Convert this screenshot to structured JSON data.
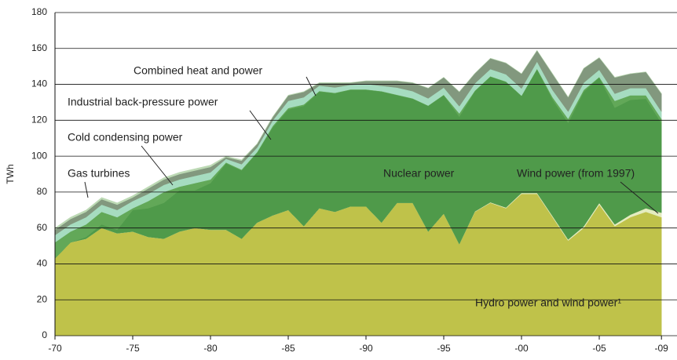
{
  "chart_data": {
    "type": "stacked_area",
    "y_label": "TWh",
    "x": [
      1970,
      1971,
      1972,
      1973,
      1974,
      1975,
      1976,
      1977,
      1978,
      1979,
      1980,
      1981,
      1982,
      1983,
      1984,
      1985,
      1986,
      1987,
      1988,
      1989,
      1990,
      1991,
      1992,
      1993,
      1994,
      1995,
      1996,
      1997,
      1998,
      1999,
      2000,
      2001,
      2002,
      2003,
      2004,
      2005,
      2006,
      2007,
      2008,
      2009
    ],
    "xlim": [
      1970,
      2010
    ],
    "xticks": [
      {
        "value": 1970,
        "label": "-70"
      },
      {
        "value": 1975,
        "label": "-75"
      },
      {
        "value": 1980,
        "label": "-80"
      },
      {
        "value": 1985,
        "label": "-85"
      },
      {
        "value": 1990,
        "label": "-90"
      },
      {
        "value": 1995,
        "label": "-95"
      },
      {
        "value": 2000,
        "label": "-00"
      },
      {
        "value": 2005,
        "label": "-05"
      },
      {
        "value": 2009,
        "label": "-09"
      }
    ],
    "ylim": [
      0,
      180
    ],
    "yticks": [
      0,
      20,
      40,
      60,
      80,
      100,
      120,
      140,
      160,
      180
    ],
    "grid": true,
    "series": [
      {
        "name": "Hydro power and wind power¹",
        "color": "#bfc24a",
        "values": [
          43,
          52,
          54,
          60,
          57,
          58,
          55,
          54,
          58,
          60,
          59,
          59,
          54,
          63,
          67,
          70,
          61,
          71,
          69,
          72,
          72,
          63,
          74,
          74,
          58,
          68,
          51,
          69,
          74,
          71,
          79,
          79,
          66,
          53,
          60,
          73,
          61,
          66,
          69,
          66
        ]
      },
      {
        "name": "Wind power (from 1997)",
        "color": "#e4ecc0",
        "values": [
          0,
          0,
          0,
          0,
          0,
          0,
          0,
          0,
          0,
          0,
          0,
          0,
          0,
          0,
          0,
          0,
          0,
          0,
          0,
          0,
          0,
          0,
          0,
          0,
          0,
          0,
          0,
          0.2,
          0.3,
          0.4,
          0.5,
          0.5,
          0.6,
          0.6,
          0.9,
          0.9,
          1,
          1.4,
          2,
          2.5
        ]
      },
      {
        "name": "Nuclear power",
        "color": "#4f9a4a",
        "values": [
          0,
          0,
          1,
          2,
          2,
          12,
          16,
          20,
          23,
          21,
          26,
          37,
          38,
          39,
          49,
          56,
          67,
          65,
          66,
          65,
          65,
          73,
          60,
          58,
          70,
          66,
          71,
          67,
          70,
          70,
          54,
          69,
          65,
          65,
          75,
          70,
          65,
          64,
          61,
          50
        ]
      },
      {
        "name": "Cold condensing power",
        "color": "#62a858",
        "values": [
          9,
          6,
          7,
          7,
          7,
          1,
          4,
          6,
          2,
          4,
          2,
          0.5,
          0.5,
          0.3,
          0.8,
          0.8,
          0.8,
          0.3,
          0.3,
          0.2,
          0.2,
          0.2,
          0.2,
          0.2,
          0.2,
          0.2,
          1.8,
          0.3,
          0.2,
          0.2,
          0.2,
          0.2,
          1.2,
          2.2,
          1,
          0.2,
          3.8,
          2.5,
          1.9,
          2.3
        ]
      },
      {
        "name": "Industrial back-pressure power",
        "color": "#a6dcc0",
        "values": [
          4,
          4,
          4,
          4,
          4,
          4,
          4,
          4,
          4,
          4,
          4,
          2,
          3,
          2.5,
          3,
          4,
          4,
          3,
          3,
          2.5,
          3,
          3,
          4,
          4,
          4,
          4,
          4,
          4,
          4,
          4,
          4,
          4,
          4,
          4,
          4,
          4,
          4,
          4,
          4,
          4
        ]
      },
      {
        "name": "Combined heat and power",
        "color": "#82987e",
        "values": [
          3,
          3,
          3,
          3,
          3,
          2,
          3,
          3,
          3,
          3,
          3,
          1,
          2,
          2,
          2,
          3,
          3,
          1.5,
          2.5,
          1.2,
          1.7,
          2.7,
          3.7,
          4.7,
          5.7,
          5.7,
          8,
          5.6,
          6,
          6.3,
          8.2,
          6.2,
          9,
          8,
          8,
          6.8,
          9,
          8,
          9,
          10
        ]
      },
      {
        "name": "Gas turbines",
        "color": "#bcd9b4",
        "values": [
          1,
          1,
          1,
          1,
          1,
          1,
          1,
          1,
          1,
          1,
          1,
          0.5,
          0.5,
          0.2,
          0.2,
          0.2,
          0.2,
          0.2,
          0.2,
          0.1,
          0.1,
          0.1,
          0.1,
          0.1,
          0.1,
          0.1,
          0.2,
          0.1,
          0.1,
          0.1,
          0.1,
          0.1,
          0.2,
          0.2,
          0.1,
          0.1,
          0.2,
          0.1,
          0.1,
          0.2
        ]
      }
    ]
  }
}
